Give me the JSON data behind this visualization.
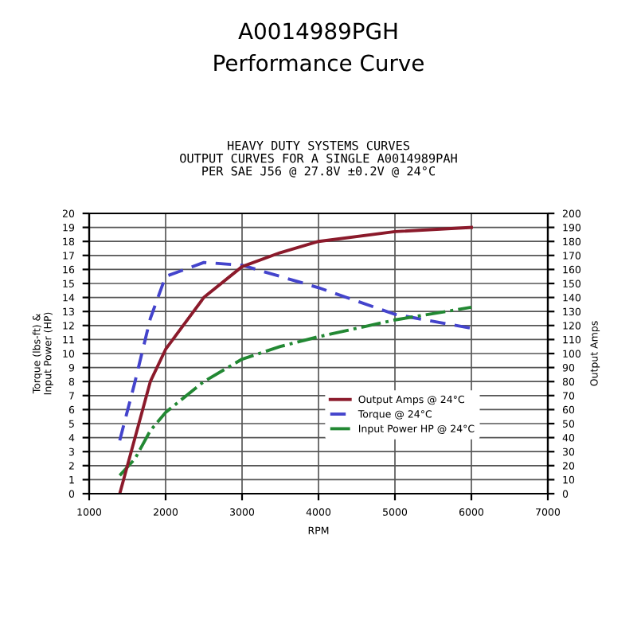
{
  "chart_data": {
    "type": "line",
    "title": "A0014989PGH",
    "subtitle": "Performance Curve",
    "annotations": [
      "HEAVY DUTY SYSTEMS CURVES\nOUTPUT CURVES FOR A SINGLE A0014989PAH\nPER SAE J56 @ 27.8V ±0.2V @ 24°C"
    ],
    "xlabel": "RPM",
    "ylabel": "Torque (lbs-ft) &\nInput Power (HP)",
    "y2label": "Output Amps",
    "xlim": [
      1000,
      7000
    ],
    "xticks": [
      1000,
      2000,
      3000,
      4000,
      5000,
      6000,
      7000
    ],
    "ylim": [
      0,
      20
    ],
    "yticks": [
      0,
      1,
      2,
      3,
      4,
      5,
      6,
      7,
      8,
      9,
      10,
      11,
      12,
      13,
      14,
      15,
      16,
      17,
      18,
      19,
      20
    ],
    "y2lim": [
      0,
      200
    ],
    "y2ticks": [
      0,
      10,
      20,
      30,
      40,
      50,
      60,
      70,
      80,
      90,
      100,
      110,
      120,
      130,
      140,
      150,
      160,
      170,
      180,
      190,
      200
    ],
    "grid": true,
    "legend": "bottom right",
    "series": [
      {
        "name": "Output Amps @ 24°C",
        "color": "#8b1a2b",
        "axis": "y2",
        "line_style": "solid",
        "x": [
          1400,
          1800,
          2000,
          2500,
          3000,
          3500,
          4000,
          5000,
          6000
        ],
        "values": [
          0,
          80,
          103,
          140,
          162,
          172,
          180,
          187,
          190
        ]
      },
      {
        "name": "Torque @ 24°C",
        "color": "#4444cc",
        "line_style": "dashed",
        "x": [
          1400,
          1600,
          1800,
          2000,
          2500,
          3000,
          3500,
          4000,
          5000,
          6000
        ],
        "values": [
          3.8,
          8,
          12.5,
          15.5,
          16.5,
          16.3,
          15.5,
          14.7,
          12.8,
          11.8
        ]
      },
      {
        "name": "Input Power HP @ 24°C",
        "color": "#228833",
        "line_style": "dashdot",
        "x": [
          1400,
          1600,
          1800,
          2000,
          2500,
          3000,
          3500,
          4000,
          5000,
          6000
        ],
        "values": [
          1.3,
          2.5,
          4.5,
          5.8,
          8,
          9.6,
          10.5,
          11.2,
          12.4,
          13.3
        ]
      }
    ]
  }
}
